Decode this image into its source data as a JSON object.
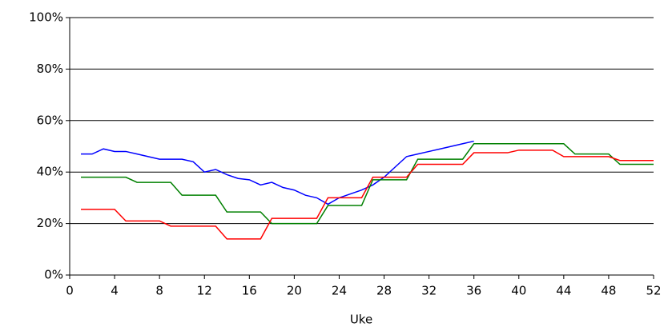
{
  "chart_data": {
    "type": "line",
    "x_label": "Uke",
    "x": [
      1,
      2,
      3,
      4,
      5,
      6,
      7,
      8,
      9,
      10,
      11,
      12,
      13,
      14,
      15,
      16,
      17,
      18,
      19,
      20,
      21,
      22,
      23,
      24,
      25,
      26,
      27,
      28,
      29,
      30,
      31,
      32,
      33,
      34,
      35,
      36,
      37,
      38,
      39,
      40,
      41,
      42,
      43,
      44,
      45,
      46,
      47,
      48,
      49,
      50,
      51,
      52
    ],
    "series": [
      {
        "color": "#0000ff",
        "values": [
          47,
          47,
          49,
          48,
          48,
          47,
          46,
          45,
          45,
          45,
          44,
          40,
          41,
          39,
          37.5,
          37,
          35,
          36,
          34,
          33,
          31,
          30,
          27.5,
          30,
          31.5,
          33,
          35,
          38,
          42,
          46,
          47,
          48,
          49,
          50,
          51,
          52,
          null,
          null,
          null,
          null,
          null,
          null,
          null,
          null,
          null,
          null,
          null,
          null,
          null,
          null,
          null,
          null
        ]
      },
      {
        "color": "#008000",
        "values": [
          38,
          38,
          38,
          38,
          38,
          36,
          36,
          36,
          36,
          31,
          31,
          31,
          31,
          24.5,
          24.5,
          24.5,
          24.5,
          20,
          20,
          20,
          20,
          20,
          27,
          27,
          27,
          27,
          37,
          37,
          37,
          37,
          45,
          45,
          45,
          45,
          45,
          51,
          51,
          51,
          51,
          51,
          51,
          51,
          51,
          51,
          47,
          47,
          47,
          47,
          43,
          43,
          43,
          43
        ]
      },
      {
        "color": "#ff0000",
        "values": [
          25.5,
          25.5,
          25.5,
          25.5,
          21,
          21,
          21,
          21,
          19,
          19,
          19,
          19,
          19,
          14,
          14,
          14,
          14,
          22,
          22,
          22,
          22,
          22,
          30,
          30,
          30,
          30,
          38,
          38,
          38,
          38,
          43,
          43,
          43,
          43,
          43,
          47.5,
          47.5,
          47.5,
          47.5,
          48.5,
          48.5,
          48.5,
          48.5,
          46,
          46,
          46,
          46,
          46,
          44.5,
          44.5,
          44.5,
          44.5
        ]
      }
    ],
    "xlim": [
      0,
      52
    ],
    "xticks": [
      0,
      4,
      8,
      12,
      16,
      20,
      24,
      28,
      32,
      36,
      40,
      44,
      48,
      52
    ],
    "ylim": [
      0,
      100
    ],
    "yticks": [
      {
        "value": 0,
        "label": "0%"
      },
      {
        "value": 20,
        "label": "20%"
      },
      {
        "value": 40,
        "label": "40%"
      },
      {
        "value": 60,
        "label": "60%"
      },
      {
        "value": 80,
        "label": "80%"
      },
      {
        "value": 100,
        "label": "100%"
      }
    ],
    "grid": true
  }
}
